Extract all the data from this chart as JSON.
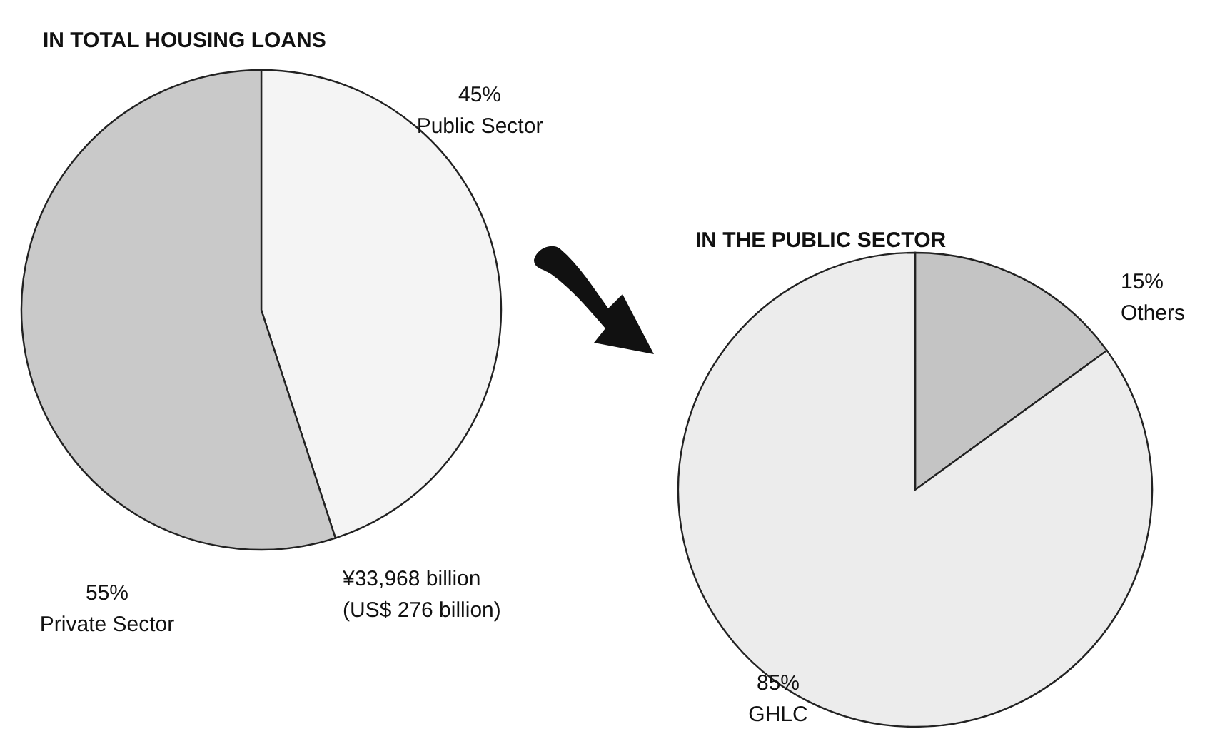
{
  "chart_data": [
    {
      "type": "pie",
      "title": "IN TOTAL HOUSING LOANS",
      "categories": [
        "Public Sector",
        "Private Sector"
      ],
      "values": [
        45,
        55
      ],
      "value_labels": [
        "45%",
        "55%"
      ],
      "colors": [
        "#f4f4f4",
        "#c9c9c9"
      ],
      "annotations": [
        "¥33,968 billion",
        "(US$ 276 billion)"
      ]
    },
    {
      "type": "pie",
      "title": "IN THE PUBLIC SECTOR",
      "categories": [
        "Others",
        "GHLC"
      ],
      "values": [
        15,
        85
      ],
      "value_labels": [
        "15%",
        "85%"
      ],
      "colors": [
        "#c4c4c4",
        "#ececec"
      ]
    }
  ]
}
